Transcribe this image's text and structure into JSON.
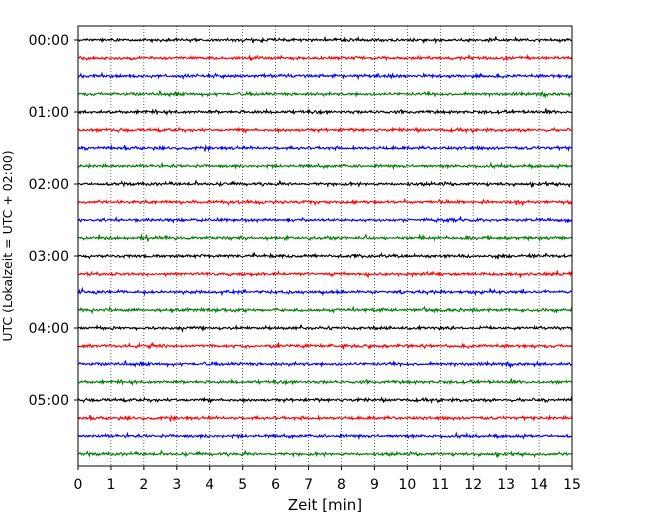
{
  "chart_data": {
    "type": "line",
    "xlabel": "Zeit  [min]",
    "ylabel": "UTC (Lokalzeit = UTC + 02:00)",
    "xlim": [
      0,
      15
    ],
    "x_ticks": [
      "0",
      "1",
      "2",
      "3",
      "4",
      "5",
      "6",
      "7",
      "8",
      "9",
      "10",
      "11",
      "12",
      "13",
      "14",
      "15"
    ],
    "y_ticks": [
      "00:00",
      "01:00",
      "02:00",
      "03:00",
      "04:00",
      "05:00"
    ],
    "grid": "vertical dotted",
    "trace_interval_min": 15,
    "trace_colors": [
      "#000000",
      "#ff0000",
      "#0000ff",
      "#008000"
    ],
    "traces": [
      {
        "start": "00:00"
      },
      {
        "start": "00:15"
      },
      {
        "start": "00:30"
      },
      {
        "start": "00:45"
      },
      {
        "start": "01:00"
      },
      {
        "start": "01:15"
      },
      {
        "start": "01:30"
      },
      {
        "start": "01:45"
      },
      {
        "start": "02:00"
      },
      {
        "start": "02:15"
      },
      {
        "start": "02:30"
      },
      {
        "start": "02:45"
      },
      {
        "start": "03:00"
      },
      {
        "start": "03:15"
      },
      {
        "start": "03:30"
      },
      {
        "start": "03:45"
      },
      {
        "start": "04:00"
      },
      {
        "start": "04:15"
      },
      {
        "start": "04:30"
      },
      {
        "start": "04:45"
      },
      {
        "start": "05:00"
      },
      {
        "start": "05:15"
      },
      {
        "start": "05:30"
      },
      {
        "start": "05:45"
      }
    ]
  }
}
